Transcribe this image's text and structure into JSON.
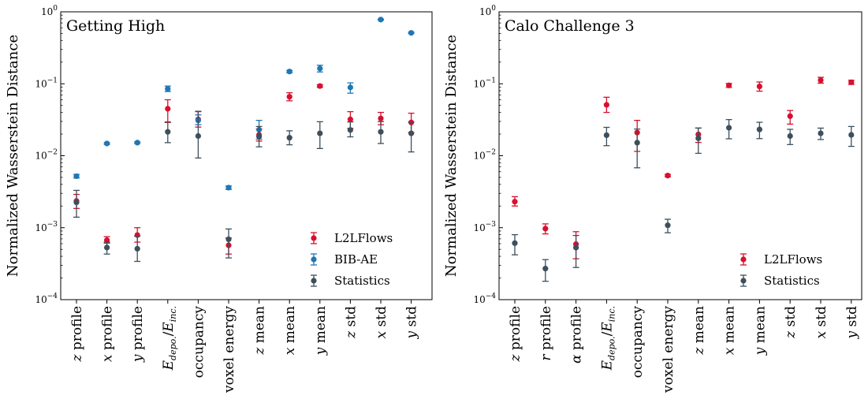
{
  "colors": {
    "L2LFlows": "#d7102e",
    "BIB-AE": "#1f77b4",
    "Statistics": "#3d4f5c"
  },
  "chart_data": [
    {
      "type": "scatter",
      "title": "Getting High",
      "ylabel": "Normalized Wasserstein Distance",
      "yscale": "log",
      "ylim": [
        0.0001,
        1
      ],
      "yticks": [
        {
          "value": 0.0001,
          "base": "10",
          "exp": "−4"
        },
        {
          "value": 0.001,
          "base": "10",
          "exp": "−3"
        },
        {
          "value": 0.01,
          "base": "10",
          "exp": "−2"
        },
        {
          "value": 0.1,
          "base": "10",
          "exp": "−1"
        },
        {
          "value": 1,
          "base": "10",
          "exp": "0"
        }
      ],
      "categories": [
        {
          "pre": "z",
          "post": " profile"
        },
        {
          "pre": "x",
          "post": " profile"
        },
        {
          "pre": "y",
          "post": " profile"
        },
        {
          "pre": "E",
          "sub": "depo.",
          "mid": "/E",
          "sub2": "inc."
        },
        {
          "pre": "",
          "post": "occupancy"
        },
        {
          "pre": "",
          "post": "voxel energy"
        },
        {
          "pre": "z",
          "post": " mean"
        },
        {
          "pre": "x",
          "post": " mean"
        },
        {
          "pre": "y",
          "post": " mean"
        },
        {
          "pre": "z",
          "post": " std"
        },
        {
          "pre": "x",
          "post": " std"
        },
        {
          "pre": "y",
          "post": " std"
        }
      ],
      "legend": [
        "L2LFlows",
        "BIB-AE",
        "Statistics"
      ],
      "legend_position": "lower-right",
      "series": [
        {
          "name": "L2LFlows",
          "offset": 0,
          "values": [
            0.00235,
            0.00067,
            0.00079,
            0.045,
            0.032,
            0.00057,
            0.0195,
            0.066,
            0.093,
            0.032,
            0.033,
            0.029
          ],
          "err_low": [
            0.00185,
            0.00061,
            0.00063,
            0.029,
            0.025,
            0.00043,
            0.016,
            0.058,
            0.089,
            0.024,
            0.027,
            0.021
          ],
          "err_high": [
            0.0029,
            0.00075,
            0.001,
            0.06,
            0.041,
            0.00072,
            0.0235,
            0.075,
            0.097,
            0.041,
            0.04,
            0.039
          ]
        },
        {
          "name": "BIB-AE",
          "offset": 0,
          "values": [
            0.0052,
            0.0148,
            0.0152,
            0.085,
            0.031,
            0.0036,
            0.023,
            0.148,
            0.163,
            0.089,
            0.78,
            0.51
          ],
          "err_low": [
            0.0049,
            0.0144,
            0.0148,
            0.078,
            0.027,
            0.0034,
            0.017,
            0.142,
            0.146,
            0.074,
            0.77,
            0.5
          ],
          "err_high": [
            0.0055,
            0.0152,
            0.0156,
            0.093,
            0.037,
            0.0038,
            0.031,
            0.153,
            0.181,
            0.103,
            0.79,
            0.52
          ]
        },
        {
          "name": "Statistics",
          "offset": 0,
          "values": [
            0.00225,
            0.00053,
            0.00051,
            0.0215,
            0.0188,
            0.00069,
            0.0185,
            0.0178,
            0.0205,
            0.0228,
            0.0215,
            0.0205
          ],
          "err_low": [
            0.0014,
            0.00043,
            0.00034,
            0.0152,
            0.0093,
            0.00038,
            0.0133,
            0.0142,
            0.0126,
            0.0183,
            0.0148,
            0.0113
          ],
          "err_high": [
            0.0033,
            0.00063,
            0.00076,
            0.0295,
            0.0415,
            0.00096,
            0.0255,
            0.0222,
            0.0297,
            0.0295,
            0.0298,
            0.0294
          ]
        }
      ]
    },
    {
      "type": "scatter",
      "title": "Calo Challenge 3",
      "ylabel": "Normalized Wasserstein Distance",
      "yscale": "log",
      "ylim": [
        0.0001,
        1
      ],
      "yticks": [
        {
          "value": 0.0001,
          "base": "10",
          "exp": "−4"
        },
        {
          "value": 0.001,
          "base": "10",
          "exp": "−3"
        },
        {
          "value": 0.01,
          "base": "10",
          "exp": "−2"
        },
        {
          "value": 0.1,
          "base": "10",
          "exp": "−1"
        },
        {
          "value": 1,
          "base": "10",
          "exp": "0"
        }
      ],
      "categories": [
        {
          "pre": "z",
          "post": " profile"
        },
        {
          "pre": "r",
          "post": " profile"
        },
        {
          "pre": "α",
          "post": " profile"
        },
        {
          "pre": "E",
          "sub": "depo.",
          "mid": "/E",
          "sub2": "inc."
        },
        {
          "pre": "",
          "post": "occupancy"
        },
        {
          "pre": "",
          "post": "voxel energy"
        },
        {
          "pre": "z",
          "post": " mean"
        },
        {
          "pre": "x",
          "post": " mean"
        },
        {
          "pre": "y",
          "post": " mean"
        },
        {
          "pre": "z",
          "post": " std"
        },
        {
          "pre": "x",
          "post": " std"
        },
        {
          "pre": "y",
          "post": " std"
        }
      ],
      "legend": [
        "L2LFlows",
        "Statistics"
      ],
      "legend_position": "lower-right",
      "series": [
        {
          "name": "L2LFlows",
          "offset": 0,
          "values": [
            0.0023,
            0.00097,
            0.00059,
            0.051,
            0.021,
            0.0053,
            0.0198,
            0.095,
            0.092,
            0.0355,
            0.112,
            0.105
          ],
          "err_low": [
            0.002,
            0.00082,
            0.00037,
            0.04,
            0.0115,
            0.0051,
            0.0153,
            0.089,
            0.079,
            0.0275,
            0.102,
            0.098
          ],
          "err_high": [
            0.0027,
            0.00113,
            0.00088,
            0.065,
            0.031,
            0.0055,
            0.0243,
            0.101,
            0.106,
            0.0425,
            0.123,
            0.112
          ]
        },
        {
          "name": "Statistics",
          "offset": 0,
          "values": [
            0.00061,
            0.00027,
            0.00053,
            0.0193,
            0.0152,
            0.00108,
            0.0175,
            0.0245,
            0.0232,
            0.0188,
            0.0205,
            0.0195
          ],
          "err_low": [
            0.00042,
            0.00018,
            0.00028,
            0.0138,
            0.0068,
            0.00085,
            0.0108,
            0.0172,
            0.0173,
            0.0143,
            0.0168,
            0.0135
          ],
          "err_high": [
            0.0008,
            0.00036,
            0.00078,
            0.0248,
            0.0235,
            0.00131,
            0.0242,
            0.0318,
            0.0292,
            0.0233,
            0.0242,
            0.0255
          ]
        }
      ]
    }
  ]
}
